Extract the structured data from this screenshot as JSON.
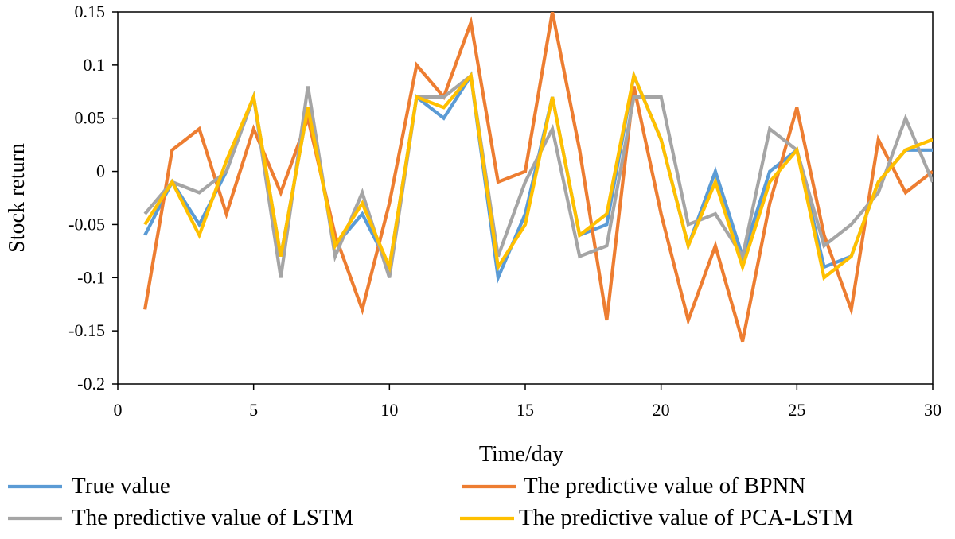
{
  "chart_data": {
    "type": "line",
    "title": "",
    "xlabel": "Time/day",
    "ylabel": "Stock return",
    "xlim": [
      0,
      30
    ],
    "ylim": [
      -0.2,
      0.15
    ],
    "x_ticks": [
      0,
      5,
      10,
      15,
      20,
      25,
      30
    ],
    "x_tick_labels": [
      "0",
      "5",
      "10",
      "15",
      "20",
      "25",
      "30"
    ],
    "y_ticks": [
      0.15,
      0.1,
      0.05,
      0,
      -0.05,
      -0.1,
      -0.15,
      -0.2
    ],
    "y_tick_labels": [
      "0.15",
      "0.1",
      "0.05",
      "0",
      "-0.05",
      "-0.1",
      "-0.15",
      "-0.2"
    ],
    "grid": false,
    "legend_position": "bottom",
    "x": [
      1,
      2,
      3,
      4,
      5,
      6,
      7,
      8,
      9,
      10,
      11,
      12,
      13,
      14,
      15,
      16,
      17,
      18,
      19,
      20,
      21,
      22,
      23,
      24,
      25,
      26,
      27,
      28,
      29,
      30
    ],
    "series": [
      {
        "name": "True value",
        "color": "#5b9bd5",
        "values": [
          -0.06,
          -0.01,
          -0.05,
          0.0,
          0.07,
          -0.08,
          0.06,
          -0.07,
          -0.04,
          -0.09,
          0.07,
          0.05,
          0.09,
          -0.1,
          -0.04,
          0.07,
          -0.06,
          -0.05,
          0.09,
          0.03,
          -0.07,
          0.0,
          -0.08,
          0.0,
          0.02,
          -0.09,
          -0.08,
          -0.01,
          0.02,
          0.02
        ]
      },
      {
        "name": "The predictive value of BPNN",
        "color": "#ed7d31",
        "values": [
          -0.13,
          0.02,
          0.04,
          -0.04,
          0.04,
          -0.02,
          0.05,
          -0.06,
          -0.13,
          -0.03,
          0.1,
          0.07,
          0.14,
          -0.01,
          0.0,
          0.15,
          0.02,
          -0.14,
          0.08,
          -0.04,
          -0.14,
          -0.07,
          -0.16,
          -0.03,
          0.06,
          -0.06,
          -0.13,
          0.03,
          -0.02,
          0.0
        ]
      },
      {
        "name": "The predictive value of LSTM",
        "color": "#a5a5a5",
        "values": [
          -0.04,
          -0.01,
          -0.02,
          0.0,
          0.07,
          -0.1,
          0.08,
          -0.08,
          -0.02,
          -0.1,
          0.07,
          0.07,
          0.09,
          -0.08,
          -0.01,
          0.04,
          -0.08,
          -0.07,
          0.07,
          0.07,
          -0.05,
          -0.04,
          -0.08,
          0.04,
          0.02,
          -0.07,
          -0.05,
          -0.02,
          0.05,
          -0.01
        ]
      },
      {
        "name": "The predictive value of PCA-LSTM",
        "color": "#ffc000",
        "values": [
          -0.05,
          -0.01,
          -0.06,
          0.01,
          0.07,
          -0.08,
          0.06,
          -0.07,
          -0.03,
          -0.09,
          0.07,
          0.06,
          0.09,
          -0.09,
          -0.05,
          0.07,
          -0.06,
          -0.04,
          0.09,
          0.03,
          -0.07,
          -0.01,
          -0.09,
          -0.01,
          0.02,
          -0.1,
          -0.08,
          -0.01,
          0.02,
          0.03
        ]
      }
    ]
  }
}
